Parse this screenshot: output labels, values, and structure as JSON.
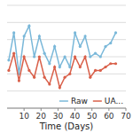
{
  "chart_data": {
    "type": "line",
    "xlabel": "Time (Days)",
    "x": [
      1,
      4,
      7,
      10,
      13,
      16,
      19,
      22,
      25,
      28,
      31,
      34,
      37,
      40,
      43,
      46,
      49,
      52,
      55,
      58,
      61,
      64
    ],
    "series": [
      {
        "name": "Raw",
        "color": "#7ab8d9",
        "marker": "circle",
        "line_style": "solid",
        "values": [
          7.4,
          8.2,
          7.0,
          8.1,
          8.4,
          7.5,
          8.1,
          7.6,
          7.3,
          7.8,
          7.2,
          7.5,
          7.2,
          8.2,
          7.8,
          8.1,
          7.5,
          7.6,
          7.5,
          7.8,
          7.9,
          8.2
        ]
      },
      {
        "name": "UA...",
        "color": "#d9604a",
        "marker": "circle",
        "line_style": "solid",
        "values": [
          7.1,
          7.6,
          6.8,
          7.5,
          7.1,
          6.9,
          7.5,
          6.9,
          6.7,
          7.2,
          6.6,
          6.9,
          7.0,
          7.5,
          7.2,
          7.5,
          6.9,
          7.1,
          7.1,
          7.2,
          7.3,
          7.3
        ]
      }
    ],
    "xlim": [
      0,
      70
    ],
    "ylim": [
      6.0,
      9.0
    ],
    "xticks": [
      10,
      20,
      30,
      40,
      50,
      60,
      70
    ],
    "yticks": [
      6.0,
      6.5,
      7.0,
      7.5,
      8.0,
      8.5,
      9.0
    ],
    "grid": true,
    "legend": "lower right",
    "tick_labels": "x"
  }
}
